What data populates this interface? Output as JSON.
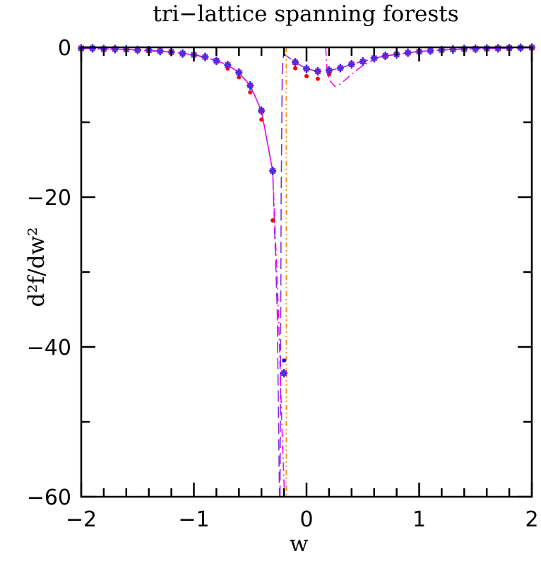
{
  "chart_data": {
    "type": "scatter",
    "title": "tri−lattice spanning forests",
    "xlabel": "w",
    "ylabel": "d²f/dw²",
    "xlim": [
      -2,
      2
    ],
    "ylim": [
      -60,
      0
    ],
    "xticks": [
      -2,
      -1,
      0,
      1,
      2
    ],
    "xtick_labels": [
      "−2",
      "−1",
      "0",
      "1",
      "2"
    ],
    "yticks": [
      0,
      -20,
      -40,
      -60
    ],
    "ytick_labels": [
      "0",
      "−20",
      "−40",
      "−60"
    ],
    "grid": false,
    "series": [
      {
        "marker": "blue-plus-purple-cross",
        "color": "#3333ff",
        "x": [
          -2.0,
          -1.9,
          -1.8,
          -1.7,
          -1.6,
          -1.5,
          -1.4,
          -1.3,
          -1.2,
          -1.1,
          -1.0,
          -0.9,
          -0.8,
          -0.7,
          -0.6,
          -0.5,
          -0.4,
          -0.3,
          -0.2,
          -0.1,
          0.0,
          0.1,
          0.2,
          0.3,
          0.4,
          0.5,
          0.6,
          0.7,
          0.8,
          0.9,
          1.0,
          1.1,
          1.2,
          1.3,
          1.4,
          1.5,
          1.6,
          1.7,
          1.8,
          1.9,
          2.0
        ],
        "y": [
          -0.13,
          -0.13,
          -0.22,
          -0.22,
          -0.28,
          -0.35,
          -0.38,
          -0.5,
          -0.63,
          -0.82,
          -1.0,
          -1.29,
          -1.79,
          -2.36,
          -3.36,
          -5.1,
          -8.46,
          -16.5,
          -43.5,
          -2.0,
          -2.86,
          -3.2,
          -3.08,
          -2.77,
          -2.26,
          -1.89,
          -1.45,
          -1.13,
          -0.94,
          -0.72,
          -0.57,
          -0.44,
          -0.35,
          -0.28,
          -0.22,
          -0.19,
          -0.16,
          -0.13,
          -0.1,
          -0.06,
          -0.03
        ]
      },
      {
        "marker": "red-dot",
        "color": "#ff0000",
        "x": [
          -2.0,
          -1.9,
          -1.8,
          -1.7,
          -1.6,
          -1.5,
          -1.4,
          -1.3,
          -1.2,
          -1.1,
          -1.0,
          -0.9,
          -0.8,
          -0.7,
          -0.6,
          -0.5,
          -0.4,
          -0.3,
          -0.2,
          -0.1,
          0.0,
          0.1,
          0.2,
          0.3,
          0.4,
          0.5,
          0.6,
          0.7,
          0.8,
          0.9,
          1.0,
          1.1,
          1.2,
          1.3,
          1.4,
          1.5,
          1.6,
          1.7,
          1.8,
          1.9,
          2.0
        ],
        "y": [
          -0.13,
          -0.13,
          -0.22,
          -0.22,
          -0.28,
          -0.35,
          -0.38,
          -0.5,
          -0.63,
          -0.82,
          -1.0,
          -1.29,
          -1.79,
          -2.83,
          -4.0,
          -6.0,
          -9.65,
          -23.1,
          -43.5,
          -2.8,
          -3.84,
          -4.2,
          -3.6,
          -2.77,
          -2.26,
          -1.89,
          -1.45,
          -1.13,
          -0.94,
          -0.72,
          -0.57,
          -0.44,
          -0.35,
          -0.28,
          -0.22,
          -0.19,
          -0.16,
          -0.13,
          -0.1,
          -0.06,
          -0.03
        ]
      },
      {
        "marker": "blue-square",
        "color": "#0000ff",
        "x": [
          -0.2
        ],
        "y": [
          -41.8
        ]
      }
    ],
    "curves": [
      {
        "style": "dashed",
        "color": "#8a2be2",
        "segments": [
          {
            "x": [
              -2.0,
              -1.8,
              -1.6,
              -1.4,
              -1.2,
              -1.0,
              -0.9,
              -0.8,
              -0.7,
              -0.6,
              -0.5,
              -0.4,
              -0.3,
              -0.26,
              -0.24
            ],
            "y": [
              -0.13,
              -0.22,
              -0.28,
              -0.38,
              -0.63,
              -1.0,
              -1.29,
              -1.79,
              -2.36,
              -3.36,
              -5.1,
              -8.46,
              -16.5,
              -35,
              -60
            ]
          },
          {
            "x": [
              -0.235,
              -0.225,
              -0.215,
              -0.205,
              -0.19,
              -0.1,
              0.0,
              0.1,
              0.2,
              0.3,
              0.4,
              0.5,
              0.6,
              0.7,
              0.8,
              0.9,
              1.0,
              1.2,
              1.4,
              1.6,
              1.8,
              2.0
            ],
            "y": [
              -60,
              -20,
              -3,
              -1.2,
              -1.0,
              -2.0,
              -2.86,
              -3.2,
              -3.08,
              -2.77,
              -2.26,
              -1.89,
              -1.45,
              -1.13,
              -0.94,
              -0.72,
              -0.57,
              -0.35,
              -0.22,
              -0.16,
              -0.1,
              -0.03
            ]
          }
        ]
      },
      {
        "style": "dash-dot",
        "color": "#ff00ff",
        "segments": [
          {
            "x": [
              -2.0,
              -1.6,
              -1.2,
              -1.0,
              -0.8,
              -0.7,
              -0.6,
              -0.5,
              -0.4,
              -0.3,
              -0.25,
              -0.22,
              -0.195
            ],
            "y": [
              -0.13,
              -0.28,
              -0.63,
              -1.0,
              -1.79,
              -2.36,
              -3.36,
              -5.1,
              -8.46,
              -16.5,
              -35,
              -50,
              -60
            ]
          },
          {
            "x": [
              0.17,
              0.18,
              0.2,
              0.25,
              0.3,
              0.4,
              0.5,
              0.6,
              0.7,
              0.8,
              1.0,
              1.2,
              1.4,
              1.6,
              1.8,
              2.0
            ],
            "y": [
              0,
              -2.5,
              -4.3,
              -5.2,
              -4.9,
              -3.6,
              -2.4,
              -1.6,
              -1.15,
              -0.94,
              -0.57,
              -0.35,
              -0.22,
              -0.16,
              -0.1,
              -0.03
            ]
          }
        ]
      },
      {
        "style": "dash-dot-dot",
        "color": "#ff8c00",
        "segments": [
          {
            "x": [
              -0.18,
              -0.18
            ],
            "y": [
              0,
              -60
            ]
          }
        ]
      }
    ]
  }
}
